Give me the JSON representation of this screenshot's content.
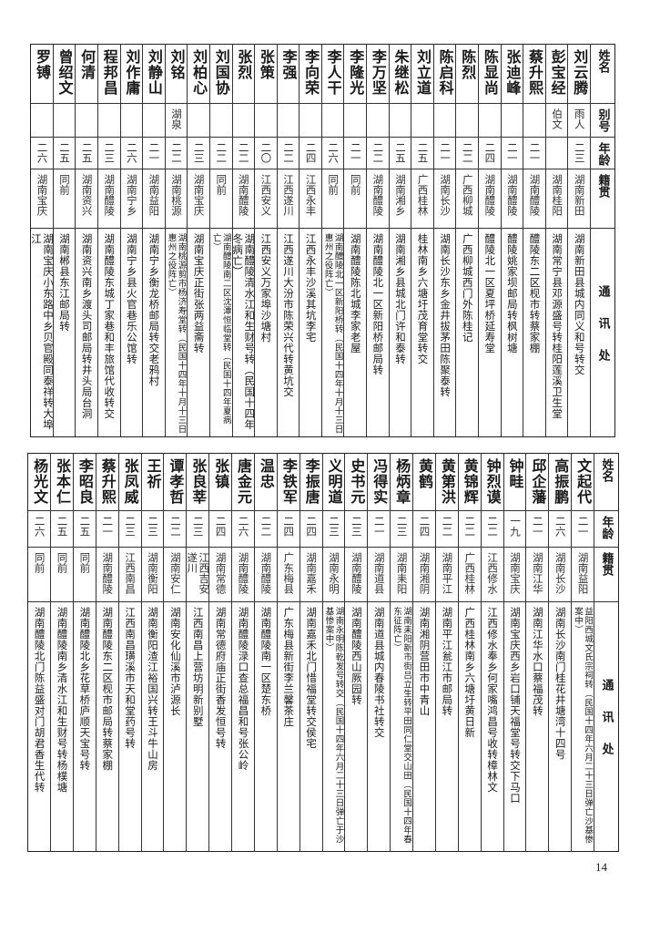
{
  "headers": {
    "name": "姓名",
    "alias": "别号",
    "age": "年龄",
    "origin": "籍贯",
    "address": "通讯处"
  },
  "top_table": [
    {
      "name": "刘云腾",
      "alias": "雨人",
      "age": "二三",
      "origin": "湖南新田",
      "address": "湖南新田县城内同义和号转交"
    },
    {
      "name": "彭宝经",
      "alias": "伯文",
      "age": "",
      "origin": "湖南桂阳",
      "address": "湖南常宁县邓源盛号转桂阳莲溪卫生堂"
    },
    {
      "name": "蔡升熙",
      "alias": "",
      "age": "二一",
      "origin": "湖南醴陵",
      "address": "醴陵东二区枧市转蔡家棚"
    },
    {
      "name": "张迪峰",
      "alias": "",
      "age": "二一",
      "origin": "湖南醴陵",
      "address": "醴陵姚家坝邮局转枫树塘"
    },
    {
      "name": "陈显尚",
      "alias": "",
      "age": "二四",
      "origin": "湖南醴陵",
      "address": "醴陵北一区夏坪桥延寿堂"
    },
    {
      "name": "陈烈",
      "alias": "",
      "age": "二二",
      "origin": "广西柳城",
      "address": "广西柳城西门外陈桂记"
    },
    {
      "name": "陈启科",
      "alias": "",
      "age": "二一",
      "origin": "湖南长沙",
      "address": "湖南长沙东乡金井拔茅田陈聚泰转"
    },
    {
      "name": "刘立道",
      "alias": "",
      "age": "二五",
      "origin": "广西桂林",
      "address": "桂林南乡六塘圩茂育堂转交"
    },
    {
      "name": "朱继松",
      "alias": "",
      "age": "二五",
      "origin": "湖南湘乡",
      "address": "湖南湘乡县城北门许和泰转"
    },
    {
      "name": "李万坚",
      "alias": "",
      "age": "二二",
      "origin": "湖南醴陵",
      "address": "湖南醴陵北一区新阳桥邮局转"
    },
    {
      "name": "李隆光",
      "alias": "",
      "age": "二一",
      "origin": "同前",
      "address": "湖南醴陵陈北城李家老屋"
    },
    {
      "name": "李人干",
      "alias": "",
      "age": "二六",
      "origin": "同前",
      "address": "湖南醴陵北一区新阳桥转（民国十四年十月十三日惠州之役阵亡）"
    },
    {
      "name": "李向荣",
      "alias": "",
      "age": "二四",
      "origin": "江西永丰",
      "address": "江西永丰沙溪其坑李宅"
    },
    {
      "name": "李强",
      "alias": "",
      "age": "二二",
      "origin": "江西遂川",
      "address": "江西遂川大汾市陈荣兴代转黄坑交"
    },
    {
      "name": "张策",
      "alias": "",
      "age": "二〇",
      "origin": "江西安义",
      "address": "江西安义万家埠沙塘村"
    },
    {
      "name": "张烈",
      "alias": "",
      "age": "二二",
      "origin": "湖南醴陵",
      "address": "湖南醴陵清水江和生财号转（民国十四年冬病亡）"
    },
    {
      "name": "刘国协",
      "alias": "",
      "age": "二二",
      "origin": "同前",
      "address": "湖南醴陵南二区沈潭恒临堂转（民国十四年夏病亡）"
    },
    {
      "name": "刘柏心",
      "alias": "",
      "age": "二三",
      "origin": "湖南宝庆",
      "address": "湖南宝庆正街张两益斋转"
    },
    {
      "name": "刘铭",
      "alias": "湖泉",
      "age": "二二",
      "origin": "湖南桃源",
      "address": "湖南桃源剪市杨济寿堂转（民国十四年十月十三日惠州之役阵亡）"
    },
    {
      "name": "刘静山",
      "alias": "",
      "age": "二一",
      "origin": "湖南益阳",
      "address": "湖南宁乡衡龙桥邮局转交老鸦村"
    },
    {
      "name": "刘作庸",
      "alias": "",
      "age": "二六",
      "origin": "湖南宁乡",
      "address": "湖南宁乡县火官巷乐公馆转"
    },
    {
      "name": "程邦昌",
      "alias": "",
      "age": "二三",
      "origin": "湖南醴陵",
      "address": "湖南醴陵东城丁家巷和丰旅馆代收转交"
    },
    {
      "name": "何清",
      "alias": "",
      "age": "二五",
      "origin": "湖南资兴",
      "address": "湖南资兴南乡渡头司邮局转井头局台洞"
    },
    {
      "name": "曾绍文",
      "alias": "",
      "age": "二五",
      "origin": "同前",
      "address": "湖南郴县东江邮局转"
    },
    {
      "name": "罗镈",
      "alias": "",
      "age": "二六",
      "origin": "湖南宝庆",
      "address": "湖南宝庆小东路中乡贝官殿同泰祥转大埠江"
    }
  ],
  "bottom_table": [
    {
      "name": "文起代",
      "age": "二一",
      "origin": "湖南益阳",
      "address": "益阳西城文氏宗祠转（民国十四年六月二十三日弹亡沙基惨案中）"
    },
    {
      "name": "高振鹏",
      "age": "二六",
      "origin": "湖南长沙",
      "address": "湖南长沙南门桂花井塘湾十四号"
    },
    {
      "name": "邱企藩",
      "age": "二一",
      "origin": "湖南江华",
      "address": "湖南江华水口蔡福茂转"
    },
    {
      "name": "钟畦",
      "age": "一九",
      "origin": "湖南宝庆",
      "address": "湖南宝庆西乡岩口铺天福堂号转交下马口"
    },
    {
      "name": "钟烈谟",
      "age": "二二",
      "origin": "江西修水",
      "address": "江西修水奉乡何家嘴鸿昌号收转樟林文"
    },
    {
      "name": "黄锦辉",
      "age": "二二",
      "origin": "广西桂林",
      "address": "广西桂林南乡六塘圩黄日新"
    },
    {
      "name": "黄第洪",
      "age": "二二",
      "origin": "湖南平江",
      "address": "湖南平江瓮江市邮局转"
    },
    {
      "name": "黄鹤",
      "age": "二四",
      "origin": "湖南湘阴",
      "address": "湖南湘阴营田市中青山"
    },
    {
      "name": "杨炳章",
      "age": "二三",
      "origin": "湖南耒阳",
      "address": "湖南耒阳新市街吕立生转平田同仁堂交山田（民国十四年春东征阵亡）"
    },
    {
      "name": "冯得实",
      "age": "二一",
      "origin": "湖南道县",
      "address": "湖南道县城内春陵书社转交"
    },
    {
      "name": "史书元",
      "age": "二三",
      "origin": "湖南醴陵",
      "address": "湖南醴陵西山厥园转"
    },
    {
      "name": "义明道",
      "age": "二三",
      "origin": "湖南永明",
      "address": "湖南永明陈乾发号转交（民国十四年六月二十三日弹亡于沙基惨案中）"
    },
    {
      "name": "李振唐",
      "age": "二四",
      "origin": "湖南嘉禾",
      "address": "湖南嘉禾北门惜福堂转交侯宅"
    },
    {
      "name": "李铁军",
      "age": "二四",
      "origin": "广东梅县",
      "address": "广东梅县新街李兰馨茶庄"
    },
    {
      "name": "温忠",
      "age": "二二",
      "origin": "湖南醴陵",
      "address": "湖南醴陵南一区楚东桥"
    },
    {
      "name": "唐金元",
      "age": "二六",
      "origin": "湖南醴陵",
      "address": "湖南醴陵渌口查总福昌和号张公岭"
    },
    {
      "name": "张镇",
      "age": "二四",
      "origin": "湖南常德",
      "address": "湖南常德府庙正街香发恒号转"
    },
    {
      "name": "张良莘",
      "age": "二三",
      "origin": "江西吉安 遂川",
      "address": "江西南昌上营坊明新别墅"
    },
    {
      "name": "谭孝哲",
      "age": "二二",
      "origin": "湖南安仁",
      "address": "湖南安化仙溪市泸源长"
    },
    {
      "name": "王祈",
      "age": "二三",
      "origin": "湖南衡阳",
      "address": "湖南衡阳渣江裕国兴转王斗牛山房"
    },
    {
      "name": "张凤威",
      "age": "二三",
      "origin": "江西南昌",
      "address": "江西南昌璜溪市天和堂药号转"
    },
    {
      "name": "蔡升熙",
      "age": "二一",
      "origin": "湖南醴陵",
      "address": "湖南醴陵东二区枧市邮局转蔡家棚"
    },
    {
      "name": "李昭良",
      "age": "二五",
      "origin": "同前",
      "address": "湖南醴陵北乡花草桥庐顺天宝号转"
    },
    {
      "name": "张本仁",
      "age": "二五",
      "origin": "同前",
      "address": "湖南醴陵南乡清水江和生财号转杨樸塘"
    },
    {
      "name": "杨光文",
      "age": "二六",
      "origin": "同前",
      "address": "湖南醴陵北门陈益盛对门胡君香生代转"
    }
  ],
  "page_number": "14"
}
